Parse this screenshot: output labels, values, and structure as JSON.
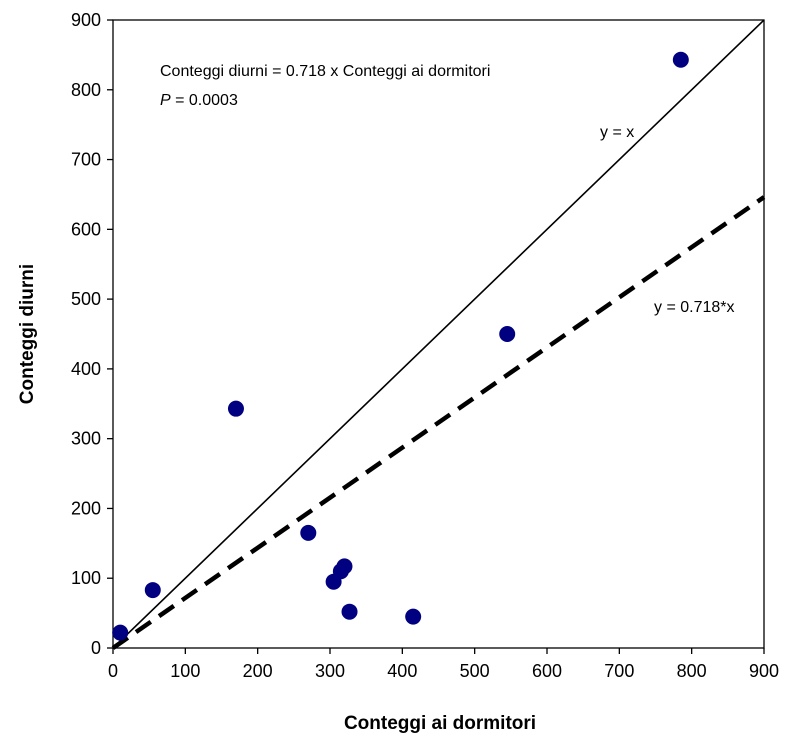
{
  "chart_data": {
    "type": "scatter",
    "xlabel": "Conteggi ai dormitori",
    "ylabel": "Conteggi diurni",
    "xlim": [
      0,
      900
    ],
    "ylim": [
      0,
      900
    ],
    "xticks": [
      0,
      100,
      200,
      300,
      400,
      500,
      600,
      700,
      800,
      900
    ],
    "yticks": [
      0,
      100,
      200,
      300,
      400,
      500,
      600,
      700,
      800,
      900
    ],
    "grid": false,
    "legend": "none",
    "marker_color": "#000080",
    "points": [
      {
        "x": 10,
        "y": 22
      },
      {
        "x": 55,
        "y": 83
      },
      {
        "x": 170,
        "y": 343
      },
      {
        "x": 270,
        "y": 165
      },
      {
        "x": 305,
        "y": 95
      },
      {
        "x": 315,
        "y": 110
      },
      {
        "x": 320,
        "y": 117
      },
      {
        "x": 327,
        "y": 52
      },
      {
        "x": 415,
        "y": 45
      },
      {
        "x": 545,
        "y": 450
      },
      {
        "x": 785,
        "y": 843
      }
    ],
    "lines": [
      {
        "label": "y = x",
        "slope": 1,
        "style": "solid"
      },
      {
        "label": "y = 0.718*x",
        "slope": 0.718,
        "style": "dashed"
      }
    ],
    "annotation": {
      "equation": "Conteggi diurni = 0.718 x Conteggi ai dormitori",
      "p_label": "P",
      "p_value": " = 0.0003"
    }
  }
}
